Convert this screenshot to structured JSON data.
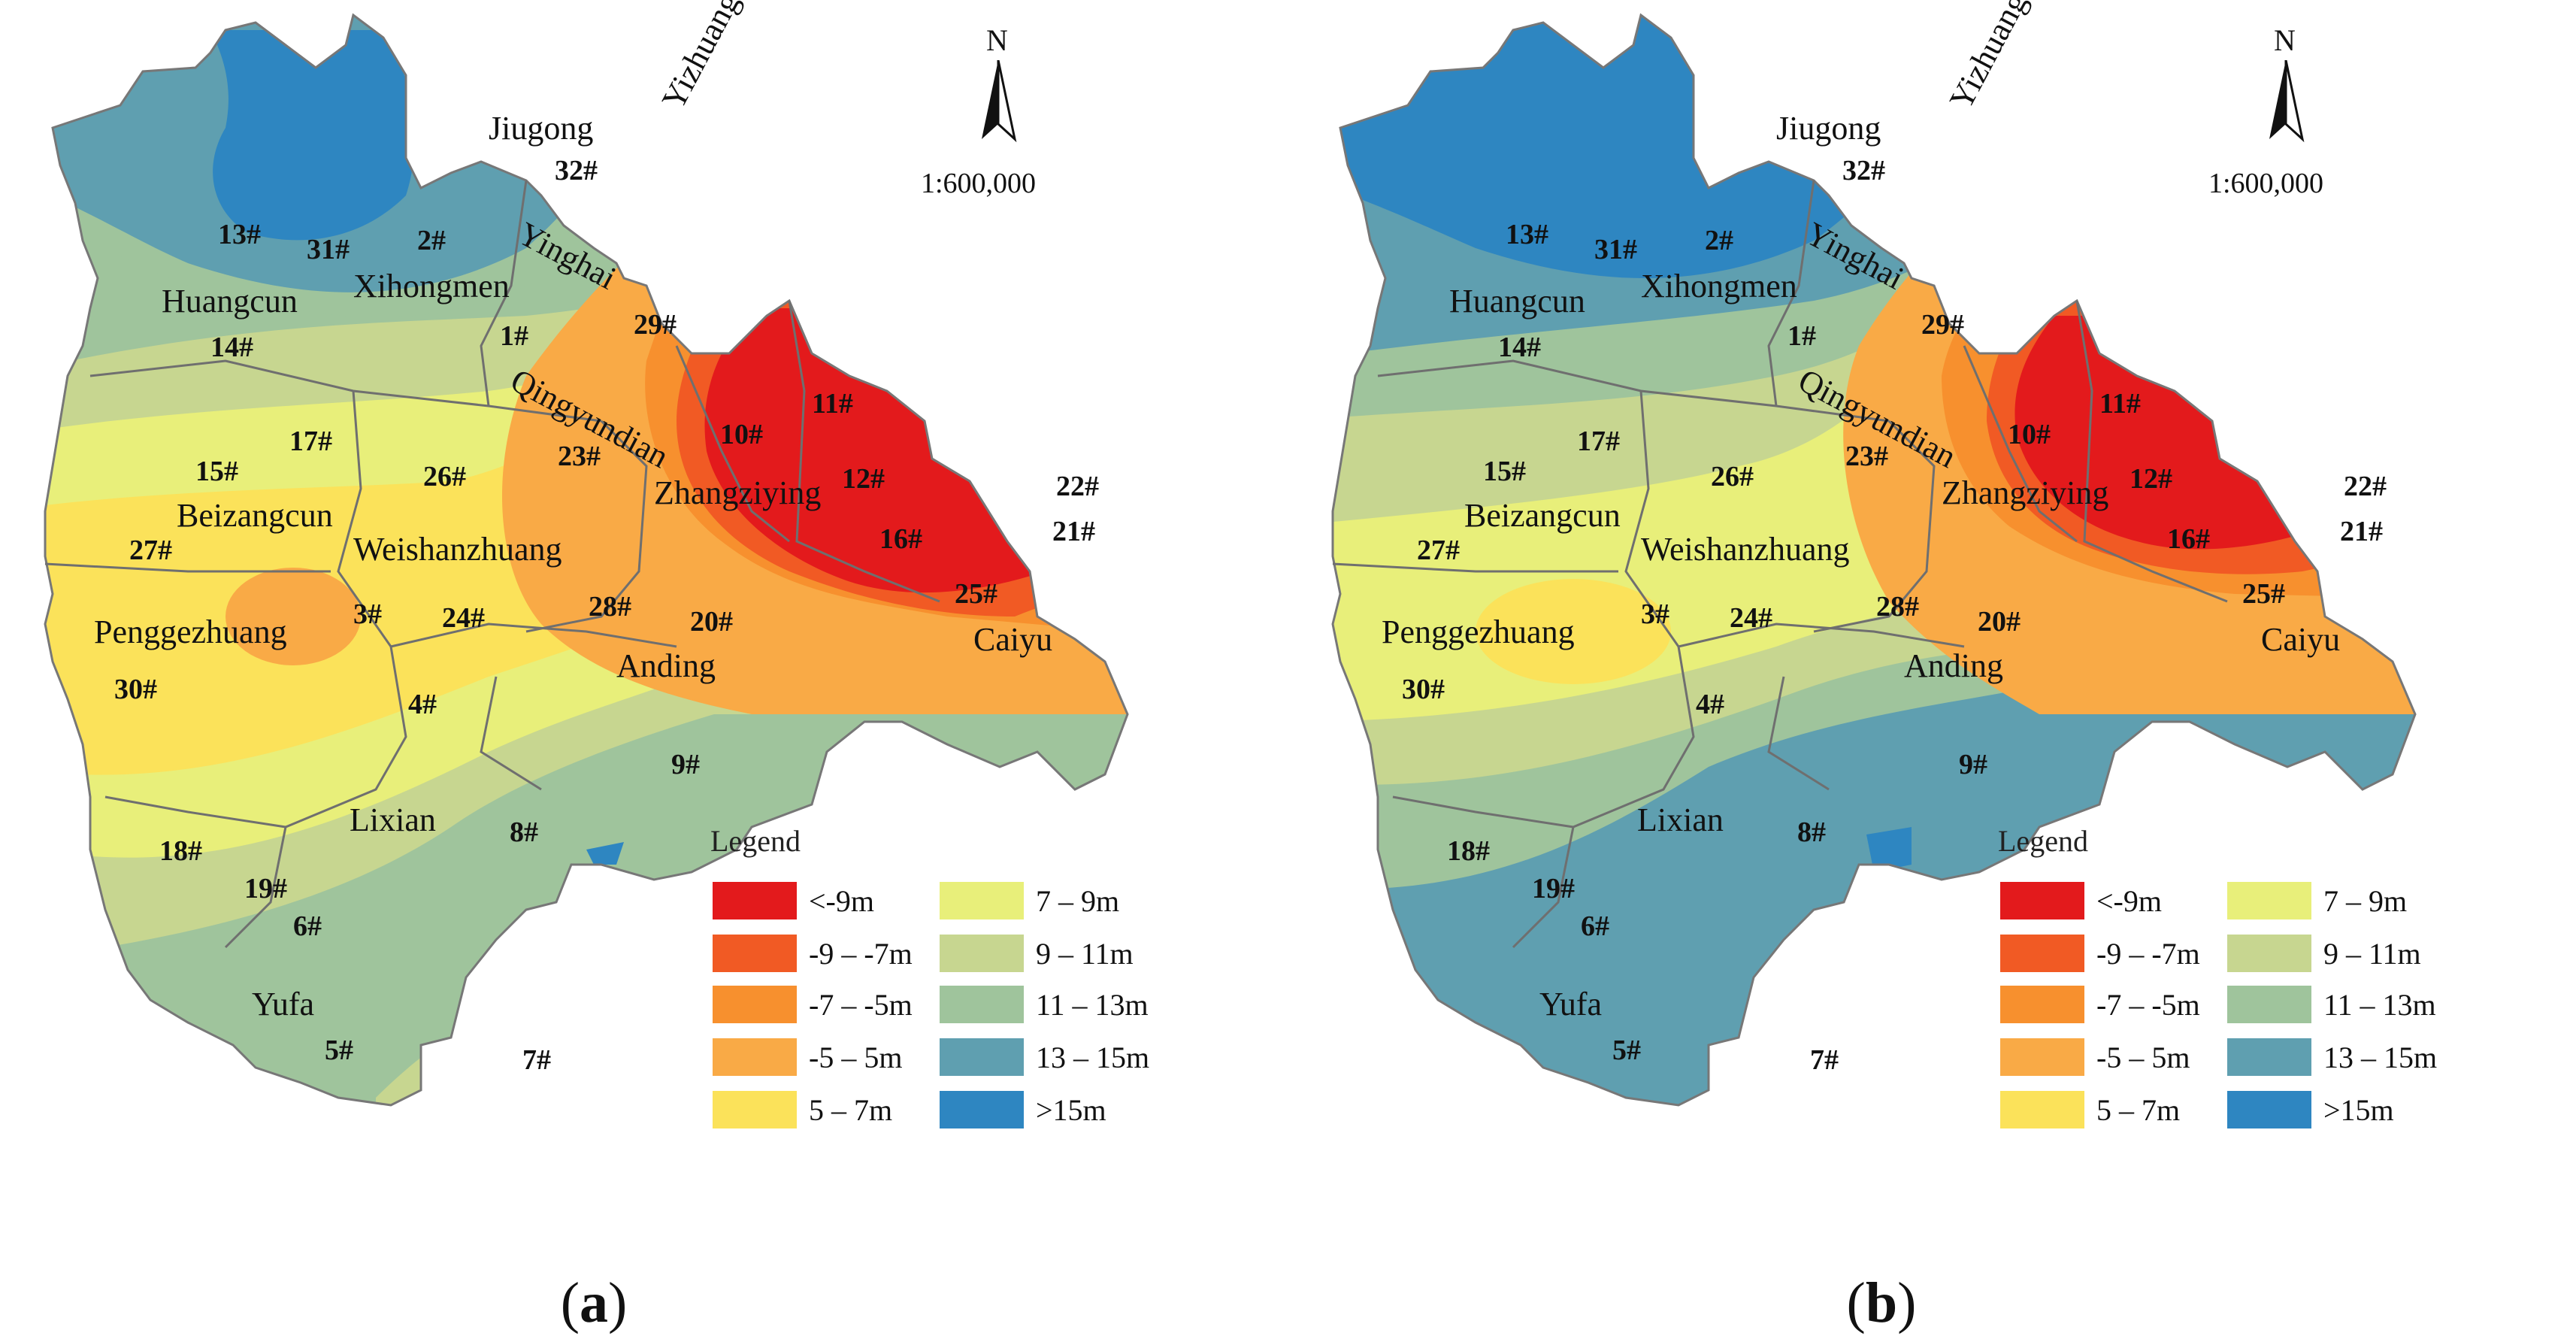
{
  "figure": {
    "panels": [
      {
        "id": "a",
        "caption_letter": "a",
        "scale": "1:600,000",
        "north": "N",
        "legend_title": "Legend",
        "places": [
          "Jiugong",
          "Yizhuang",
          "Yinghai",
          "Xihongmen",
          "Huangcun",
          "Qingyundian",
          "Zhangziying",
          "Beizangcun",
          "Weishanzhuang",
          "Penggezhuang",
          "Anding",
          "Caiyu",
          "Lixian",
          "Yufa"
        ],
        "wells": [
          "32#",
          "13#",
          "31#",
          "2#",
          "29#",
          "1#",
          "14#",
          "10#",
          "11#",
          "17#",
          "15#",
          "23#",
          "26#",
          "12#",
          "22#",
          "21#",
          "16#",
          "27#",
          "25#",
          "3#",
          "24#",
          "28#",
          "20#",
          "30#",
          "4#",
          "9#",
          "8#",
          "18#",
          "19#",
          "6#",
          "5#",
          "7#"
        ]
      },
      {
        "id": "b",
        "caption_letter": "b",
        "scale": "1:600,000",
        "north": "N",
        "legend_title": "Legend",
        "places": [
          "Jiugong",
          "Yizhuang",
          "Yinghai",
          "Xihongmen",
          "Huangcun",
          "Qingyundian",
          "Zhangziying",
          "Beizangcun",
          "Weishanzhuang",
          "Penggezhuang",
          "Anding",
          "Caiyu",
          "Lixian",
          "Yufa"
        ],
        "wells": [
          "32#",
          "13#",
          "31#",
          "2#",
          "29#",
          "1#",
          "14#",
          "10#",
          "11#",
          "17#",
          "15#",
          "23#",
          "26#",
          "12#",
          "22#",
          "21#",
          "16#",
          "27#",
          "25#",
          "3#",
          "24#",
          "28#",
          "20#",
          "30#",
          "4#",
          "9#",
          "8#",
          "18#",
          "19#",
          "6#",
          "5#",
          "7#"
        ]
      }
    ],
    "legend_classes": [
      {
        "label": "<-9m",
        "color": "#e31a1c"
      },
      {
        "label": "-9 – -7m",
        "color": "#f15a24"
      },
      {
        "label": "-7 – -5m",
        "color": "#f7902e"
      },
      {
        "label": "-5 – 5m",
        "color": "#f9aa46"
      },
      {
        "label": "5 – 7m",
        "color": "#fbe25a"
      },
      {
        "label": "7 – 9m",
        "color": "#e8ef7a"
      },
      {
        "label": "9 – 11m",
        "color": "#c7d690"
      },
      {
        "label": "11 – 13m",
        "color": "#9fc49c"
      },
      {
        "label": "13 – 15m",
        "color": "#5f9fb0"
      },
      {
        "label": ">15m",
        "color": "#2e86c1"
      }
    ]
  }
}
